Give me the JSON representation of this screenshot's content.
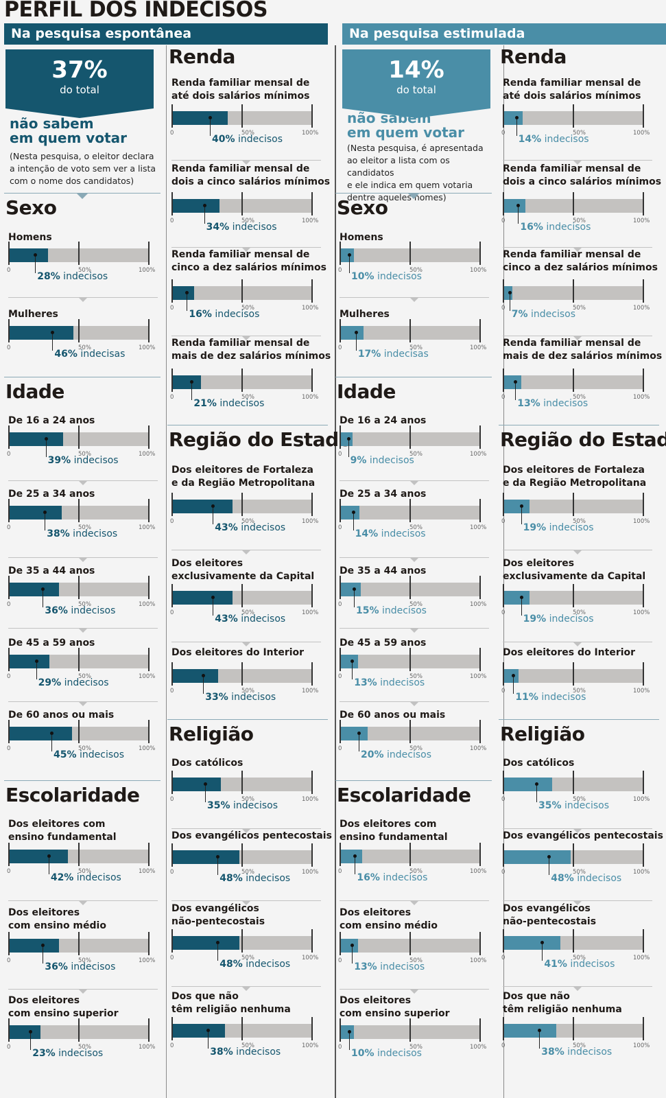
{
  "title": "PERFIL DOS INDECISOS",
  "colors": {
    "dark": "#15566e",
    "light": "#4a8ea7",
    "track": "#c4c2c0"
  },
  "ticks": {
    "min": "0",
    "mid": "50%",
    "max": "100%"
  },
  "spontaneous": {
    "band": "Na pesquisa espontânea",
    "total_pct": "37%",
    "total_label": "do total",
    "head_line1": "não sabem",
    "head_line2": "em quem votar",
    "note": [
      "(Nesta pesquisa, o eleitor declara",
      "a intenção de voto sem ver a lista",
      "com o nome dos candidatos)"
    ]
  },
  "stimulated": {
    "band": "Na pesquisa estimulada",
    "total_pct": "14%",
    "total_label": "do total",
    "head_line1": "não sabem",
    "head_line2": "em quem votar",
    "note": [
      "(Nesta pesquisa, é apresentada",
      "ao eleitor a lista com os candidatos",
      "e ele indica em quem votaria",
      "dentre aqueles nomes)"
    ]
  },
  "chart_data": [
    {
      "type": "bar",
      "title": "Na pesquisa espontânea",
      "xlim": [
        0,
        100
      ],
      "groups": [
        {
          "name": "Sexo",
          "items": [
            {
              "label": [
                "Homens"
              ],
              "value": 28,
              "value_label": "28%",
              "suffix": "indecisos"
            },
            {
              "label": [
                "Mulheres"
              ],
              "value": 46,
              "value_label": "46%",
              "suffix": "indecisas"
            }
          ]
        },
        {
          "name": "Idade",
          "items": [
            {
              "label": [
                "De 16 a 24 anos"
              ],
              "value": 39,
              "value_label": "39%",
              "suffix": "indecisos"
            },
            {
              "label": [
                "De 25 a 34 anos"
              ],
              "value": 38,
              "value_label": "38%",
              "suffix": "indecisos"
            },
            {
              "label": [
                "De 35 a 44 anos"
              ],
              "value": 36,
              "value_label": "36%",
              "suffix": "indecisos"
            },
            {
              "label": [
                "De 45 a 59 anos"
              ],
              "value": 29,
              "value_label": "29%",
              "suffix": "indecisos"
            },
            {
              "label": [
                "De 60 anos ou mais"
              ],
              "value": 45,
              "value_label": "45%",
              "suffix": "indecisos"
            }
          ]
        },
        {
          "name": "Escolaridade",
          "items": [
            {
              "label": [
                "Dos eleitores com",
                "ensino fundamental"
              ],
              "value": 42,
              "value_label": "42%",
              "suffix": "indecisos"
            },
            {
              "label": [
                "Dos eleitores",
                "com ensino médio"
              ],
              "value": 36,
              "value_label": "36%",
              "suffix": "indecisos"
            },
            {
              "label": [
                "Dos eleitores",
                "com ensino superior"
              ],
              "value": 23,
              "value_label": "23%",
              "suffix": "indecisos"
            }
          ]
        },
        {
          "name": "Renda",
          "items": [
            {
              "label": [
                "Renda familiar mensal de",
                "até dois salários mínimos"
              ],
              "value": 40,
              "value_label": "40%",
              "suffix": "indecisos"
            },
            {
              "label": [
                "Renda familiar mensal de",
                "dois a cinco salários mínimos"
              ],
              "value": 34,
              "value_label": "34%",
              "suffix": "indecisos"
            },
            {
              "label": [
                "Renda familiar mensal de",
                "cinco a dez salários mínimos"
              ],
              "value": 16,
              "value_label": "16%",
              "suffix": "indecisos"
            },
            {
              "label": [
                "Renda familiar mensal de",
                "mais de dez salários mínimos"
              ],
              "value": 21,
              "value_label": "21%",
              "suffix": "indecisos"
            }
          ]
        },
        {
          "name": "Região do Estado",
          "items": [
            {
              "label": [
                "Dos eleitores de Fortaleza",
                "e da Região Metropolitana"
              ],
              "value": 43,
              "value_label": "43%",
              "suffix": "indecisos"
            },
            {
              "label": [
                "Dos eleitores",
                "exclusivamente da Capital"
              ],
              "value": 43,
              "value_label": "43%",
              "suffix": "indecisos"
            },
            {
              "label": [
                "Dos eleitores do Interior"
              ],
              "value": 33,
              "value_label": "33%",
              "suffix": "indecisos"
            }
          ]
        },
        {
          "name": "Religião",
          "items": [
            {
              "label": [
                "Dos católicos"
              ],
              "value": 35,
              "value_label": "35%",
              "suffix": "indecisos"
            },
            {
              "label": [
                "Dos evangélicos pentecostais"
              ],
              "value": 48,
              "value_label": "48%",
              "suffix": "indecisos"
            },
            {
              "label": [
                "Dos evangélicos",
                "não-pentecostais"
              ],
              "value": 48,
              "value_label": "48%",
              "suffix": "indecisos"
            },
            {
              "label": [
                "Dos que não",
                "têm religião nenhuma"
              ],
              "value": 38,
              "value_label": "38%",
              "suffix": "indecisos"
            }
          ]
        }
      ]
    },
    {
      "type": "bar",
      "title": "Na pesquisa estimulada",
      "xlim": [
        0,
        100
      ],
      "groups": [
        {
          "name": "Sexo",
          "items": [
            {
              "label": [
                "Homens"
              ],
              "value": 10,
              "value_label": "10%",
              "suffix": "indecisos"
            },
            {
              "label": [
                "Mulheres"
              ],
              "value": 17,
              "value_label": "17%",
              "suffix": "indecisas"
            }
          ]
        },
        {
          "name": "Idade",
          "items": [
            {
              "label": [
                "De 16 a 24 anos"
              ],
              "value": 9,
              "value_label": "9%",
              "suffix": "indecisos"
            },
            {
              "label": [
                "De 25 a 34 anos"
              ],
              "value": 14,
              "value_label": "14%",
              "suffix": "indecisos"
            },
            {
              "label": [
                "De 35 a 44 anos"
              ],
              "value": 15,
              "value_label": "15%",
              "suffix": "indecisos"
            },
            {
              "label": [
                "De 45 a 59 anos"
              ],
              "value": 13,
              "value_label": "13%",
              "suffix": "indecisos"
            },
            {
              "label": [
                "De 60 anos ou mais"
              ],
              "value": 20,
              "value_label": "20%",
              "suffix": "indecisos"
            }
          ]
        },
        {
          "name": "Escolaridade",
          "items": [
            {
              "label": [
                "Dos eleitores com",
                "ensino fundamental"
              ],
              "value": 16,
              "value_label": "16%",
              "suffix": "indecisos"
            },
            {
              "label": [
                "Dos eleitores",
                "com ensino médio"
              ],
              "value": 13,
              "value_label": "13%",
              "suffix": "indecisos"
            },
            {
              "label": [
                "Dos eleitores",
                "com ensino superior"
              ],
              "value": 10,
              "value_label": "10%",
              "suffix": "indecisos"
            }
          ]
        },
        {
          "name": "Renda",
          "items": [
            {
              "label": [
                "Renda familiar mensal de",
                "até dois salários mínimos"
              ],
              "value": 14,
              "value_label": "14%",
              "suffix": "indecisos"
            },
            {
              "label": [
                "Renda familiar mensal de",
                "dois a cinco salários mínimos"
              ],
              "value": 16,
              "value_label": "16%",
              "suffix": "indecisos"
            },
            {
              "label": [
                "Renda familiar mensal de",
                "cinco a dez salários mínimos"
              ],
              "value": 7,
              "value_label": "7%",
              "suffix": "indecisos"
            },
            {
              "label": [
                "Renda familiar mensal de",
                "mais de dez salários mínimos"
              ],
              "value": 13,
              "value_label": "13%",
              "suffix": "indecisos"
            }
          ]
        },
        {
          "name": "Região do Estado",
          "items": [
            {
              "label": [
                "Dos eleitores de Fortaleza",
                "e da Região Metropolitana"
              ],
              "value": 19,
              "value_label": "19%",
              "suffix": "indecisos"
            },
            {
              "label": [
                "Dos eleitores",
                "exclusivamente da Capital"
              ],
              "value": 19,
              "value_label": "19%",
              "suffix": "indecisos"
            },
            {
              "label": [
                "Dos eleitores do Interior"
              ],
              "value": 11,
              "value_label": "11%",
              "suffix": "indecisos"
            }
          ]
        },
        {
          "name": "Religião",
          "items": [
            {
              "label": [
                "Dos católicos"
              ],
              "value": 35,
              "value_label": "35%",
              "suffix": "indecisos"
            },
            {
              "label": [
                "Dos evangélicos pentecostais"
              ],
              "value": 48,
              "value_label": "48%",
              "suffix": "indecisos"
            },
            {
              "label": [
                "Dos evangélicos",
                "não-pentecostais"
              ],
              "value": 41,
              "value_label": "41%",
              "suffix": "indecisos"
            },
            {
              "label": [
                "Dos que não",
                "têm religião nenhuma"
              ],
              "value": 38,
              "value_label": "38%",
              "suffix": "indecisos"
            }
          ]
        }
      ]
    }
  ]
}
